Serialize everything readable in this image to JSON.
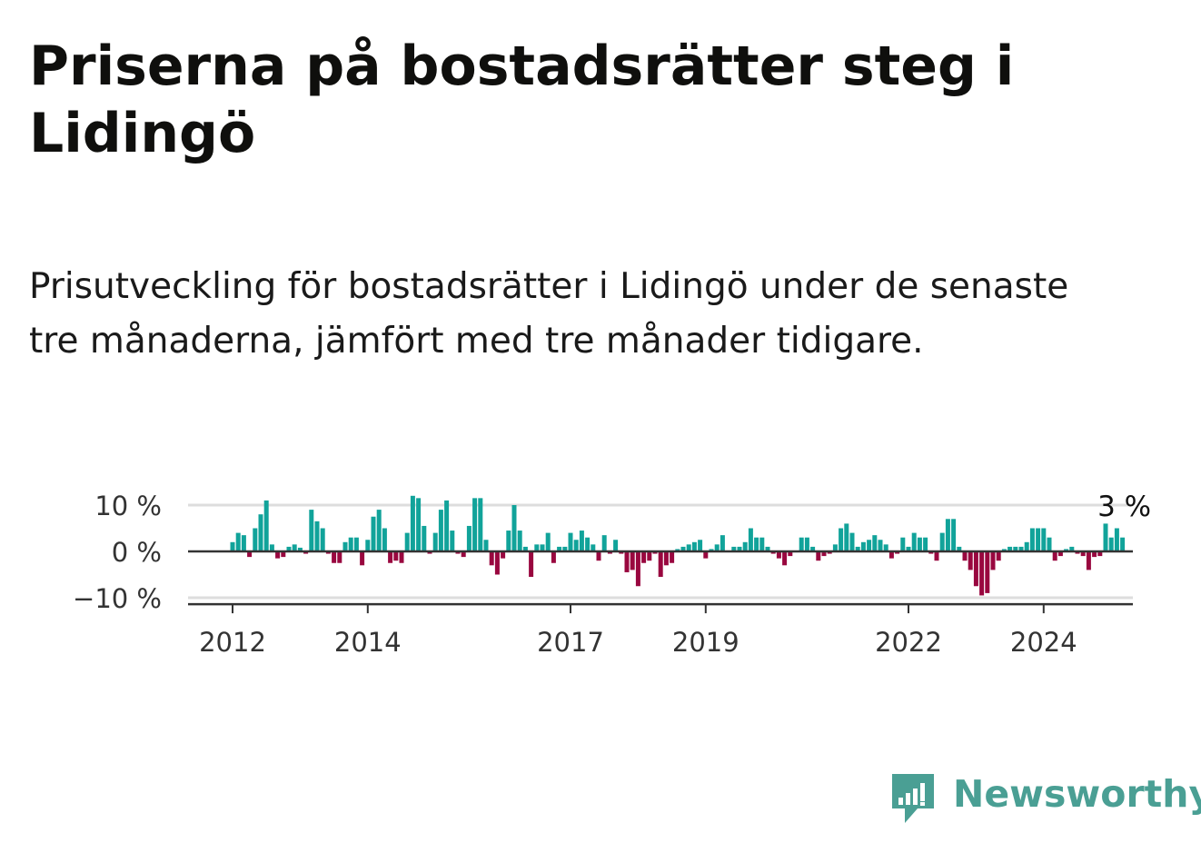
{
  "header": {
    "title": "Priserna på bostadsrätter steg i Lidingö",
    "subtitle": "Prisutveckling för bostadsrätter i Lidingö under de senaste tre månaderna, jämfört med tre månader tidigare."
  },
  "brand": {
    "name": "Newsworthy",
    "icon": "newsworthy-logo-icon",
    "color": "#4a9f94"
  },
  "colors": {
    "positive": "#11a39a",
    "negative": "#99073f",
    "grid": "#dddddd",
    "zero": "#333333"
  },
  "chart_data": {
    "type": "bar",
    "x_start": "2012-01",
    "x_end": "2024-07",
    "x_ticks": [
      "2012",
      "2014",
      "2017",
      "2019",
      "2022",
      "2024"
    ],
    "y_ticks": [
      10,
      0,
      -10
    ],
    "y_tick_labels": [
      "10 %",
      "0 %",
      "−10 %"
    ],
    "ylim": [
      -11,
      11
    ],
    "last_value_label": "3 %",
    "grid": true,
    "values": [
      2,
      4,
      3.5,
      -1.2,
      5,
      8,
      11,
      1.5,
      -1.5,
      -1.2,
      1,
      1.5,
      0.8,
      -0.5,
      9,
      6.5,
      5,
      -0.5,
      -2.5,
      -2.5,
      2,
      3,
      3,
      -3,
      2.5,
      7.5,
      9,
      5,
      -2.5,
      -2,
      -2.5,
      4,
      12,
      11.5,
      5.5,
      -0.5,
      4,
      9,
      11,
      4.5,
      -0.5,
      -1.2,
      5.5,
      11.5,
      11.5,
      2.5,
      -3,
      -5,
      -1.5,
      4.5,
      10,
      4.5,
      1,
      -5.5,
      1.5,
      1.5,
      4,
      -2.5,
      1,
      1,
      4,
      2.5,
      4.5,
      3,
      1.5,
      -2,
      3.5,
      -0.5,
      2.5,
      -0.5,
      -4.5,
      -4,
      -7.5,
      -2.5,
      -2,
      -0.5,
      -5.5,
      -3,
      -2.5,
      0.5,
      1,
      1.5,
      2,
      2.5,
      -1.5,
      0.5,
      1.5,
      3.5,
      0.2,
      1,
      1,
      2,
      5,
      3,
      3,
      1,
      -0.5,
      -1.5,
      -3,
      -1,
      -0.2,
      3,
      3,
      1,
      -2,
      -1,
      -0.5,
      1.5,
      5,
      6,
      4,
      1,
      2,
      2.5,
      3.5,
      2.5,
      1.5,
      -1.5,
      -0.5,
      3,
      1,
      4,
      3,
      3,
      -0.5,
      -2,
      4,
      7,
      7,
      1,
      -2,
      -4,
      -7.5,
      -9.5,
      -9,
      -4,
      -2,
      0.5,
      1,
      1,
      1,
      2,
      5,
      5,
      5,
      3,
      -2,
      -1,
      0.5,
      1,
      -0.5,
      -1,
      -4,
      -1.2,
      -1,
      6,
      3,
      5,
      3
    ]
  }
}
